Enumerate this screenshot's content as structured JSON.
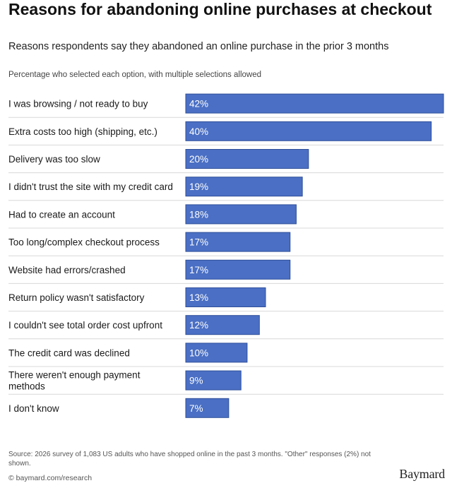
{
  "title": "Reasons for abandoning online purchases at checkout",
  "subtitle": "Reasons respondents say they abandoned an online purchase in the prior 3 months",
  "note": "Percentage who selected each option, with multiple selections allowed",
  "source": "Source: 2026 survey of 1,083 US adults who have shopped online in the past 3 months. \"Other\" responses (2%) not shown.",
  "url": "© baymard.com/research",
  "logo": "Baymard",
  "colors": {
    "bar": "#4a6fc4",
    "bar_stroke": "#2f4f9a",
    "divider": "#d8d8d8"
  },
  "chart_data": {
    "type": "bar",
    "orientation": "horizontal",
    "categories": [
      "I was browsing / not ready to buy",
      "Extra costs too high (shipping, etc.)",
      "Delivery was too slow",
      "I didn't trust the site with my credit card",
      "Had to create an account",
      "Too long/complex checkout process",
      "Website had errors/crashed",
      "Return policy wasn't satisfactory",
      "I couldn't see total order cost upfront",
      "The credit card was declined",
      "There weren't enough payment methods",
      "I don't know"
    ],
    "values": [
      42,
      40,
      20,
      19,
      18,
      17,
      17,
      13,
      12,
      10,
      9,
      7
    ],
    "value_labels": [
      "42%",
      "40%",
      "20%",
      "19%",
      "18%",
      "17%",
      "17%",
      "13%",
      "12%",
      "10%",
      "9%",
      "7%"
    ],
    "xlim": [
      0,
      42
    ],
    "grid": false
  }
}
